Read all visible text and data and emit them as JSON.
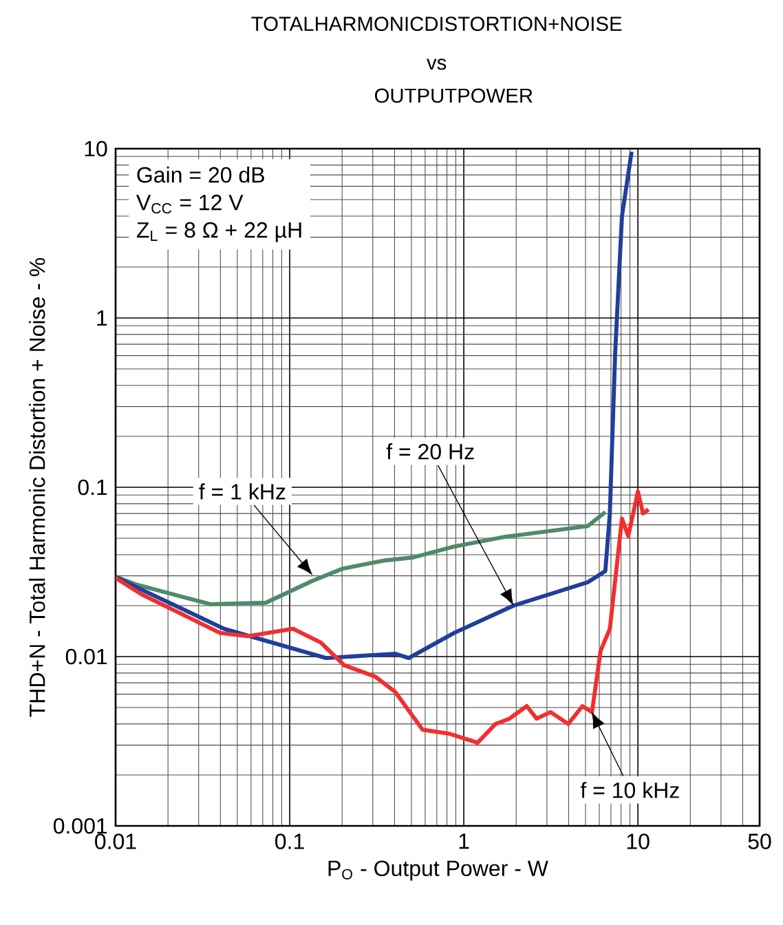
{
  "chart_data": {
    "type": "line",
    "title": "TOTALHARMONICDISTORTION+NOISE",
    "subtitle": "vs OUTPUTPOWER",
    "xlabel": "P$_{O}$ - Output Power - W",
    "ylabel": "THD+N - Total Harmonic Distortion + Noise - %",
    "log": "xy",
    "grid": true,
    "line_style": "solid",
    "marker": "none",
    "xlim": [
      0.01,
      50
    ],
    "ylim": [
      0.001,
      10
    ],
    "xticks": [
      0.01,
      0.1,
      1,
      10,
      50
    ],
    "yticks": [
      0.001,
      0.01,
      0.1,
      1,
      10
    ],
    "annotations": [
      "Gain = 20 dB",
      "V$_{CC}$ = 12 V",
      "Z$_{L}$ = 8 Ω + 22 µH",
      "f = 1 kHz",
      "f = 20 Hz",
      "f = 10 kHz"
    ],
    "series": [
      {
        "color": "#4f8a6a",
        "x": [
          0.01,
          0.0134,
          0.035,
          0.073,
          0.135,
          0.2,
          0.354,
          0.51,
          0.88,
          1.73,
          5.15,
          6.5
        ],
        "values": [
          0.0296,
          0.0265,
          0.0204,
          0.0208,
          0.028,
          0.033,
          0.037,
          0.0385,
          0.0447,
          0.051,
          0.059,
          0.0714
        ]
      },
      {
        "color": "#1f3f9a",
        "x": [
          0.01,
          0.0134,
          0.042,
          0.162,
          0.403,
          0.483,
          0.88,
          1.93,
          5.15,
          6.5,
          6.9,
          7.4,
          8.1,
          9.2
        ],
        "values": [
          0.0296,
          0.0255,
          0.0146,
          0.0098,
          0.0104,
          0.0098,
          0.0138,
          0.02,
          0.0275,
          0.032,
          0.07,
          0.615,
          4.0,
          9.6
        ]
      },
      {
        "color": "#f03030",
        "x": [
          0.01,
          0.0141,
          0.0398,
          0.0574,
          0.1046,
          0.151,
          0.205,
          0.311,
          0.403,
          0.58,
          0.83,
          1.2,
          1.52,
          1.83,
          2.3,
          2.62,
          3.15,
          3.98,
          4.8,
          5.45,
          6.1,
          6.9,
          8.1,
          8.8,
          10.0,
          10.7,
          11.5
        ],
        "values": [
          0.0292,
          0.0233,
          0.0138,
          0.0132,
          0.0146,
          0.0121,
          0.0089,
          0.0076,
          0.0062,
          0.0037,
          0.0035,
          0.0031,
          0.004,
          0.0043,
          0.0051,
          0.0043,
          0.0047,
          0.004,
          0.0051,
          0.0047,
          0.0108,
          0.0146,
          0.0653,
          0.0514,
          0.0945,
          0.07,
          0.074
        ]
      }
    ]
  }
}
